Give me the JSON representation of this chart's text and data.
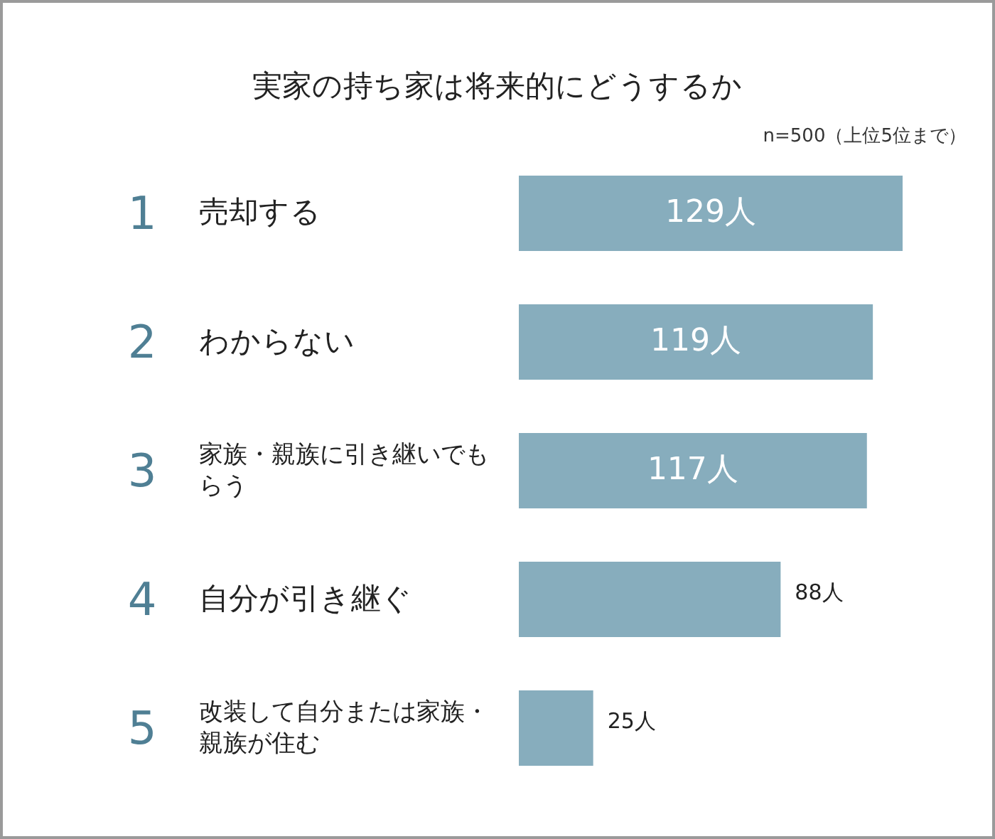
{
  "chart_data": {
    "type": "bar",
    "orientation": "horizontal",
    "title": "実家の持ち家は将来的にどうするか",
    "subtitle": "n=500（上位5位まで）",
    "categories": [
      "売却する",
      "わからない",
      "家族・親族に引き継いでもらう",
      "自分が引き継ぐ",
      "改装して自分または家族・親族が住む"
    ],
    "values": [
      129,
      119,
      117,
      88,
      25
    ],
    "value_labels": [
      "129人",
      "119人",
      "117人",
      "88人",
      "25人"
    ],
    "color": "#87adbd",
    "annotations": [
      "1",
      "2",
      "3",
      "4",
      "5"
    ]
  }
}
